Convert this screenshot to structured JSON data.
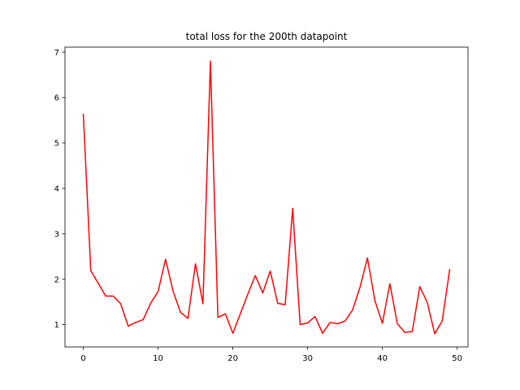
{
  "chart_data": {
    "type": "line",
    "title": "total loss for the 200th datapoint",
    "xlabel": "",
    "ylabel": "",
    "xlim": [
      -2.45,
      51.45
    ],
    "ylim": [
      0.51,
      7.11
    ],
    "xticks": [
      0,
      10,
      20,
      30,
      40,
      50
    ],
    "yticks": [
      1,
      2,
      3,
      4,
      5,
      6,
      7
    ],
    "grid": false,
    "series": [
      {
        "color": "#ff0000",
        "x": [
          0,
          1,
          2,
          3,
          4,
          5,
          6,
          7,
          8,
          9,
          10,
          11,
          12,
          13,
          14,
          15,
          16,
          17,
          18,
          19,
          20,
          21,
          22,
          23,
          24,
          25,
          26,
          27,
          28,
          29,
          30,
          31,
          32,
          33,
          34,
          35,
          36,
          37,
          38,
          39,
          40,
          41,
          42,
          43,
          44,
          45,
          46,
          47,
          48,
          49
        ],
        "values": [
          5.63,
          2.19,
          1.91,
          1.63,
          1.63,
          1.46,
          0.97,
          1.05,
          1.11,
          1.47,
          1.73,
          2.44,
          1.74,
          1.27,
          1.14,
          2.34,
          1.46,
          6.8,
          1.16,
          1.24,
          0.81,
          1.24,
          1.67,
          2.08,
          1.7,
          2.18,
          1.47,
          1.44,
          3.56,
          1.0,
          1.04,
          1.18,
          0.81,
          1.05,
          1.02,
          1.08,
          1.32,
          1.82,
          2.47,
          1.53,
          1.03,
          1.9,
          1.02,
          0.83,
          0.85,
          1.84,
          1.49,
          0.8,
          1.08,
          2.21
        ]
      }
    ]
  }
}
